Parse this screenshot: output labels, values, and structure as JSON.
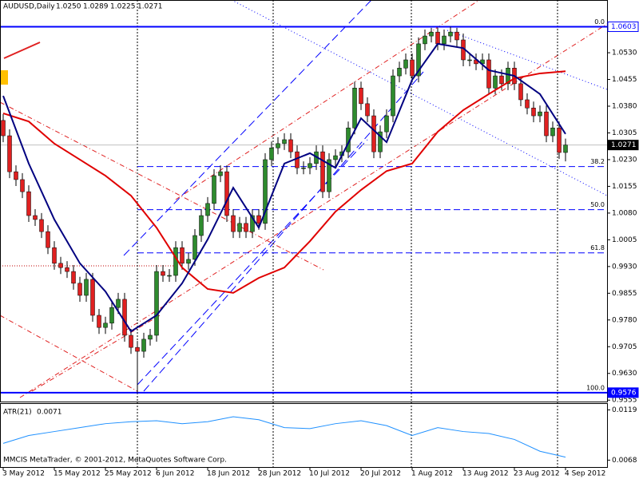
{
  "chart_data": {
    "type": "candlestick",
    "title": "AUDUSD,Daily",
    "header_values": [
      "1.0250",
      "1.0289",
      "1.0225",
      "1.0271"
    ],
    "up_color": "#2e8b2e",
    "down_color": "#e02020",
    "open": [
      1.034,
      1.0297,
      1.0196,
      1.0174,
      1.014,
      1.0073,
      1.0062,
      1.0028,
      0.9983,
      0.9939,
      0.9927,
      0.9916,
      0.9883,
      0.9849,
      0.9894,
      0.9793,
      0.9759,
      0.9771,
      0.9815,
      0.9838,
      0.9737,
      0.9703,
      0.9692,
      0.9726,
      0.9737,
      0.9916,
      0.9905,
      0.9905,
      0.9983,
      0.9939,
      0.995,
      1.0017,
      1.0073,
      1.0107,
      1.0185,
      1.0196,
      1.0073,
      1.0028,
      1.0051,
      1.0028,
      1.0073,
      1.0051,
      1.023,
      1.0263,
      1.0275,
      1.0286,
      1.0252,
      1.0207,
      1.0207,
      1.0219,
      1.0252,
      1.014,
      1.023,
      1.0241,
      1.0252,
      1.0319,
      1.0431,
      1.0387,
      1.0353,
      1.0252,
      1.0308,
      1.0353,
      1.0465,
      1.0487,
      1.051,
      1.0465,
      1.0555,
      1.0577,
      1.0588,
      1.0555,
      1.0577,
      1.0588,
      1.0566,
      1.051,
      1.051,
      1.0499,
      1.051,
      1.0431,
      1.0465,
      1.0443,
      1.0487,
      1.0443,
      1.0398,
      1.0375,
      1.0353,
      1.0364,
      1.0297,
      1.0319,
      1.025
    ],
    "high": [
      1.0358,
      1.0315,
      1.0214,
      1.0192,
      1.0158,
      1.0091,
      1.008,
      1.0046,
      1.0001,
      0.9957,
      0.9945,
      0.9934,
      0.9901,
      0.9912,
      0.9912,
      0.9811,
      0.9789,
      0.9833,
      0.9856,
      0.9856,
      0.9755,
      0.9721,
      0.9744,
      0.9755,
      0.9934,
      0.9934,
      0.9923,
      1.0001,
      1.0001,
      0.9968,
      1.0035,
      1.0091,
      1.0125,
      1.0203,
      1.0214,
      1.0214,
      1.0091,
      1.0069,
      1.0069,
      1.0091,
      1.0091,
      1.0248,
      1.0281,
      1.0293,
      1.0304,
      1.0304,
      1.027,
      1.0225,
      1.0237,
      1.027,
      1.027,
      1.0248,
      1.0259,
      1.027,
      1.0337,
      1.0449,
      1.0449,
      1.0405,
      1.0371,
      1.0326,
      1.0371,
      1.0483,
      1.0505,
      1.0528,
      1.0528,
      1.0573,
      1.0595,
      1.06,
      1.06,
      1.0595,
      1.0603,
      1.06,
      1.0584,
      1.0528,
      1.0528,
      1.0528,
      1.0528,
      1.0483,
      1.0483,
      1.0505,
      1.0505,
      1.0461,
      1.0416,
      1.0393,
      1.0382,
      1.0382,
      1.0337,
      1.0337,
      1.0289
    ],
    "low": [
      1.0279,
      1.0178,
      1.0156,
      1.0122,
      1.0055,
      1.0044,
      1.001,
      0.9965,
      0.9921,
      0.9909,
      0.9898,
      0.9865,
      0.9831,
      0.9831,
      0.9775,
      0.9741,
      0.9741,
      0.9753,
      0.9797,
      0.9719,
      0.9685,
      0.9576,
      0.9674,
      0.9708,
      0.9719,
      0.9887,
      0.9887,
      0.9887,
      0.9921,
      0.9921,
      0.9932,
      0.9999,
      1.0055,
      1.0089,
      1.0167,
      1.0055,
      1.001,
      1.001,
      1.001,
      1.001,
      1.0033,
      1.0033,
      1.0212,
      1.0245,
      1.0257,
      1.0234,
      1.0189,
      1.0189,
      1.0189,
      1.0201,
      1.0122,
      1.0122,
      1.0212,
      1.0223,
      1.0234,
      1.0301,
      1.0369,
      1.0335,
      1.0234,
      1.0234,
      1.029,
      1.0335,
      1.0447,
      1.0469,
      1.0447,
      1.0447,
      1.0537,
      1.0559,
      1.0537,
      1.0537,
      1.0559,
      1.0548,
      1.0492,
      1.0492,
      1.0481,
      1.0481,
      1.0413,
      1.0413,
      1.0425,
      1.0425,
      1.0425,
      1.038,
      1.0357,
      1.0335,
      1.0335,
      1.0279,
      1.0279,
      1.0232,
      1.0225
    ],
    "close": [
      1.0297,
      1.0196,
      1.0174,
      1.014,
      1.0073,
      1.0062,
      1.0028,
      0.9983,
      0.9939,
      0.9927,
      0.9916,
      0.9883,
      0.9849,
      0.9894,
      0.9793,
      0.9759,
      0.9771,
      0.9815,
      0.9838,
      0.9737,
      0.9703,
      0.9692,
      0.9726,
      0.9737,
      0.9916,
      0.9905,
      0.9905,
      0.9983,
      0.9939,
      0.995,
      1.0017,
      1.0073,
      1.0107,
      1.0185,
      1.0196,
      1.0073,
      1.0028,
      1.0051,
      1.0028,
      1.0073,
      1.0051,
      1.023,
      1.0263,
      1.0275,
      1.0286,
      1.0252,
      1.0207,
      1.0207,
      1.0219,
      1.0252,
      1.014,
      1.023,
      1.0241,
      1.0252,
      1.0319,
      1.0431,
      1.0387,
      1.0353,
      1.0252,
      1.0308,
      1.0353,
      1.0465,
      1.0487,
      1.051,
      1.0465,
      1.0555,
      1.0577,
      1.0588,
      1.0555,
      1.0577,
      1.0588,
      1.0566,
      1.051,
      1.051,
      1.0499,
      1.051,
      1.0431,
      1.0465,
      1.0443,
      1.0487,
      1.0443,
      1.0398,
      1.0375,
      1.0353,
      1.0364,
      1.0297,
      1.0319,
      1.025,
      1.0271
    ],
    "xlim": [
      -0.5,
      94.5
    ],
    "ylim": [
      0.9551,
      1.0678
    ],
    "yticks": [
      {
        "value": 1.053,
        "label": "1.0530"
      },
      {
        "value": 1.0455,
        "label": "1.0455"
      },
      {
        "value": 1.038,
        "label": "1.0380"
      },
      {
        "value": 1.0305,
        "label": "1.0305"
      },
      {
        "value": 1.023,
        "label": "1.0230"
      },
      {
        "value": 1.0155,
        "label": "1.0155"
      },
      {
        "value": 1.008,
        "label": "1.0080"
      },
      {
        "value": 1.0005,
        "label": "1.0005"
      },
      {
        "value": 0.993,
        "label": "0.9930"
      },
      {
        "value": 0.9855,
        "label": "0.9855"
      },
      {
        "value": 0.978,
        "label": "0.9780"
      },
      {
        "value": 0.9705,
        "label": "0.9705"
      },
      {
        "value": 0.963,
        "label": "0.9630"
      },
      {
        "value": 0.9555,
        "label": "0.9555"
      }
    ],
    "xticks": [
      {
        "value": 0,
        "label": "3 May 2012"
      },
      {
        "value": 8,
        "label": "15 May 2012"
      },
      {
        "value": 16,
        "label": "25 May 2012"
      },
      {
        "value": 24,
        "label": "6 Jun 2012"
      },
      {
        "value": 32,
        "label": "18 Jun 2012"
      },
      {
        "value": 40,
        "label": "28 Jun 2012"
      },
      {
        "value": 48,
        "label": "10 Jul 2012"
      },
      {
        "value": 56,
        "label": "20 Jul 2012"
      },
      {
        "value": 64,
        "label": "1 Aug 2012"
      },
      {
        "value": 72,
        "label": "13 Aug 2012"
      },
      {
        "value": 80,
        "label": "23 Aug 2012"
      },
      {
        "value": 88,
        "label": "4 Sep 2012"
      }
    ],
    "overlays": [
      {
        "color": "#e00000",
        "x": [
          0,
          4,
          8,
          12,
          16,
          20,
          24,
          28,
          32,
          36,
          40,
          44,
          48,
          52,
          56,
          60,
          64,
          68,
          72,
          76,
          80,
          84,
          88
        ],
        "values": [
          1.036,
          1.0337,
          1.0275,
          1.023,
          1.0185,
          1.0129,
          1.0039,
          0.9927,
          0.9867,
          0.9856,
          0.9898,
          0.9927,
          1.0001,
          1.0084,
          1.0145,
          1.0198,
          1.0219,
          1.0308,
          1.0369,
          1.0414,
          1.0458,
          1.0472,
          1.0478
        ]
      },
      {
        "color": "#000080",
        "x": [
          0,
          4,
          8,
          12,
          16,
          20,
          24,
          28,
          32,
          36,
          40,
          44,
          48,
          52,
          56,
          60,
          64,
          68,
          72,
          76,
          80,
          84,
          88
        ],
        "values": [
          1.0409,
          1.0219,
          1.0062,
          0.9939,
          0.986,
          0.9748,
          0.9793,
          0.9883,
          1.0006,
          1.0151,
          1.0039,
          1.0219,
          1.0248,
          1.0207,
          1.0346,
          1.0279,
          1.0454,
          1.0555,
          1.0543,
          1.0481,
          1.0465,
          1.0414,
          1.0302
        ]
      }
    ],
    "hlines": [
      {
        "value": 1.0603,
        "label": "1.0603",
        "color": "#0000ff"
      },
      {
        "value": 1.0271,
        "label": "1.0271",
        "color": "#c0c0c0"
      },
      {
        "value": 0.9576,
        "label": "0.9576",
        "color": "#0000ff"
      }
    ],
    "fibonacci": {
      "color": "#0000ff",
      "levels": [
        {
          "value": 0,
          "label": "0.0"
        },
        {
          "value": 38.2,
          "label": "38.2"
        },
        {
          "value": 50,
          "label": "50.0"
        },
        {
          "value": 61.8,
          "label": "61.8"
        },
        {
          "value": 100,
          "label": "100.0"
        }
      ]
    },
    "atr": {
      "label": "ATR(21)",
      "color": "#1e90ff",
      "x": [
        0,
        4,
        8,
        12,
        16,
        20,
        24,
        28,
        32,
        36,
        40,
        44,
        48,
        52,
        56,
        60,
        64,
        68,
        72,
        76,
        80,
        84,
        88
      ],
      "values": [
        0.0085,
        0.0093,
        0.0097,
        0.0101,
        0.0105,
        0.0107,
        0.0108,
        0.0105,
        0.0107,
        0.0112,
        0.0109,
        0.0101,
        0.01,
        0.0105,
        0.0108,
        0.0103,
        0.0093,
        0.0101,
        0.0097,
        0.0095,
        0.0089,
        0.0077,
        0.0071
      ],
      "ylim": [
        0.0061,
        0.0125
      ],
      "yticks": [
        {
          "value": 0.0119,
          "label": "0.0119"
        },
        {
          "value": 0.0068,
          "label": "0.0068"
        }
      ]
    },
    "footer": "MMCIS MetaTrader, © 2001-2012, MetaQuotes Software Corp."
  }
}
